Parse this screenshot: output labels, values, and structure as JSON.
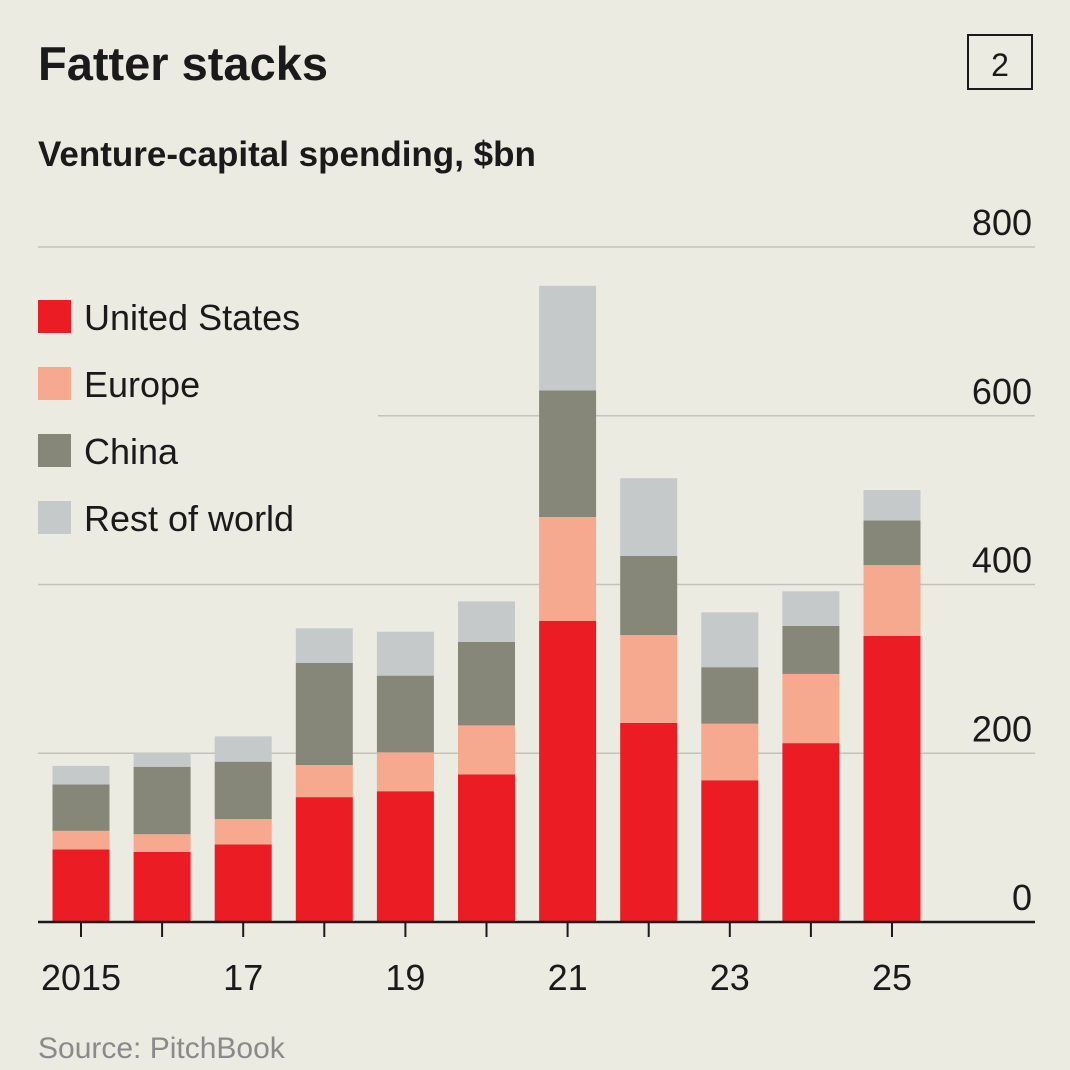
{
  "chart_data": {
    "type": "bar",
    "stacked": true,
    "title": "Fatter stacks",
    "chart_number": "2",
    "subtitle": "Venture-capital spending, $bn",
    "source": "Source: PitchBook",
    "categories": [
      2015,
      2016,
      2017,
      2018,
      2019,
      2020,
      2021,
      2022,
      2023,
      2024,
      2025
    ],
    "x_tick_labels": [
      {
        "year": 2015,
        "label": "2015"
      },
      {
        "year": 2017,
        "label": "17"
      },
      {
        "year": 2019,
        "label": "19"
      },
      {
        "year": 2021,
        "label": "21"
      },
      {
        "year": 2023,
        "label": "23"
      },
      {
        "year": 2025,
        "label": "25"
      }
    ],
    "y_ticks": [
      0,
      200,
      400,
      600,
      800
    ],
    "y_tick_labels": [
      "0",
      "200",
      "400",
      "600",
      "800"
    ],
    "ylim": [
      0,
      800
    ],
    "grid": true,
    "legend_position": "top-left",
    "series": [
      {
        "name": "United States",
        "color": "#ec1c24",
        "values": [
          86,
          83,
          92,
          148,
          155,
          175,
          357,
          236,
          168,
          212,
          339
        ]
      },
      {
        "name": "Europe",
        "color": "#f6a98e",
        "values": [
          22,
          21,
          30,
          38,
          46,
          58,
          123,
          104,
          67,
          82,
          84
        ]
      },
      {
        "name": "China",
        "color": "#878779",
        "values": [
          55,
          80,
          68,
          121,
          91,
          99,
          150,
          94,
          67,
          57,
          53
        ]
      },
      {
        "name": "Rest of world",
        "color": "#c6c9ca",
        "values": [
          22,
          16,
          30,
          41,
          52,
          48,
          124,
          92,
          65,
          41,
          36
        ]
      }
    ]
  }
}
